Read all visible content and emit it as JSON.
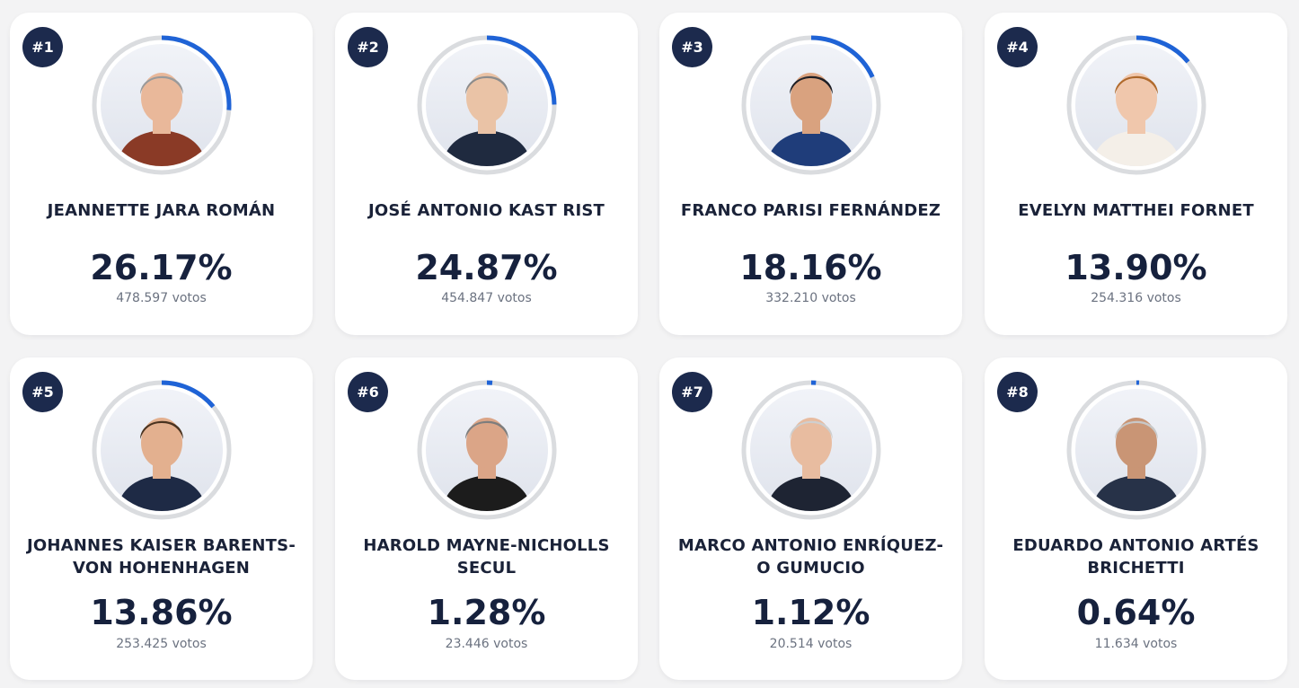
{
  "colors": {
    "accent": "#1f63d6",
    "ring_track": "#dadcdf",
    "rank_badge": "#1c2a4d",
    "name_text": "#1a2238",
    "votes_text": "#6b7280",
    "background": "#f3f3f4",
    "card": "#ffffff"
  },
  "candidates": [
    {
      "rank": "#1",
      "name": "JEANNETTE JARA ROMÁN",
      "percent": "26.17%",
      "percent_value": 26.17,
      "votes": "478.597 votos",
      "icon": "candidate-portrait"
    },
    {
      "rank": "#2",
      "name": "JOSÉ ANTONIO KAST RIST",
      "percent": "24.87%",
      "percent_value": 24.87,
      "votes": "454.847 votos",
      "icon": "candidate-portrait"
    },
    {
      "rank": "#3",
      "name": "FRANCO PARISI FERNÁNDEZ",
      "percent": "18.16%",
      "percent_value": 18.16,
      "votes": "332.210 votos",
      "icon": "candidate-portrait"
    },
    {
      "rank": "#4",
      "name": "EVELYN MATTHEI FORNET",
      "percent": "13.90%",
      "percent_value": 13.9,
      "votes": "254.316 votos",
      "icon": "candidate-portrait"
    },
    {
      "rank": "#5",
      "name": "JOHANNES KAISER BARENTS-VON HOHENHAGEN",
      "percent": "13.86%",
      "percent_value": 13.86,
      "votes": "253.425 votos",
      "icon": "candidate-portrait"
    },
    {
      "rank": "#6",
      "name": "HAROLD MAYNE-NICHOLLS SECUL",
      "percent": "1.28%",
      "percent_value": 1.28,
      "votes": "23.446 votos",
      "icon": "candidate-portrait"
    },
    {
      "rank": "#7",
      "name": "MARCO ANTONIO ENRÍQUEZ-O GUMUCIO",
      "percent": "1.12%",
      "percent_value": 1.12,
      "votes": "20.514 votos",
      "icon": "candidate-portrait"
    },
    {
      "rank": "#8",
      "name": "EDUARDO ANTONIO ARTÉS BRICHETTI",
      "percent": "0.64%",
      "percent_value": 0.64,
      "votes": "11.634 votos",
      "icon": "candidate-portrait"
    }
  ]
}
